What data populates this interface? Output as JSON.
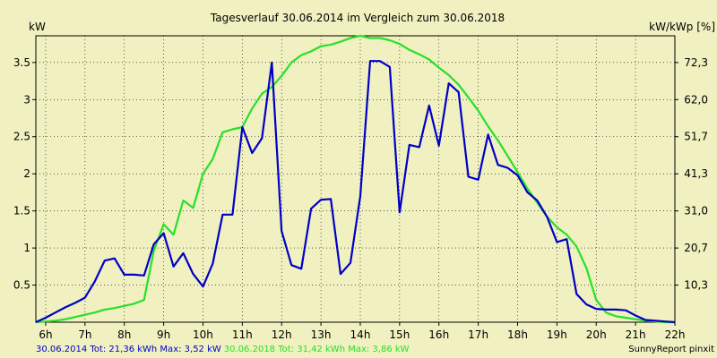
{
  "chart_data": {
    "type": "line",
    "title": "Tagesverlauf 30.06.2014 im Vergleich zum 30.06.2018",
    "ylabel_left": "kW",
    "ylabel_right": "kW/kWp [%]",
    "xlim": [
      5.75,
      22.0
    ],
    "ylim": [
      0,
      3.86
    ],
    "x_ticks": [
      {
        "x": 6,
        "label": "6h"
      },
      {
        "x": 7,
        "label": "7h"
      },
      {
        "x": 8,
        "label": "8h"
      },
      {
        "x": 9,
        "label": "9h"
      },
      {
        "x": 10,
        "label": "10h"
      },
      {
        "x": 11,
        "label": "11h"
      },
      {
        "x": 12,
        "label": "12h"
      },
      {
        "x": 13,
        "label": "13h"
      },
      {
        "x": 14,
        "label": "14h"
      },
      {
        "x": 15,
        "label": "15h"
      },
      {
        "x": 16,
        "label": "16h"
      },
      {
        "x": 17,
        "label": "17h"
      },
      {
        "x": 18,
        "label": "18h"
      },
      {
        "x": 19,
        "label": "19h"
      },
      {
        "x": 20,
        "label": "20h"
      },
      {
        "x": 21,
        "label": "21h"
      },
      {
        "x": 22,
        "label": "22h"
      }
    ],
    "y_ticks_left": [
      {
        "y": 0.5,
        "label": "0.5"
      },
      {
        "y": 1,
        "label": "1"
      },
      {
        "y": 1.5,
        "label": "1.5"
      },
      {
        "y": 2,
        "label": "2"
      },
      {
        "y": 2.5,
        "label": "2.5"
      },
      {
        "y": 3,
        "label": "3"
      },
      {
        "y": 3.5,
        "label": "3.5"
      }
    ],
    "y_ticks_right": [
      {
        "y": 0.5,
        "label": "10,3"
      },
      {
        "y": 1,
        "label": "20,7"
      },
      {
        "y": 1.5,
        "label": "31,0"
      },
      {
        "y": 2,
        "label": "41,3"
      },
      {
        "y": 2.5,
        "label": "51,7"
      },
      {
        "y": 3,
        "label": "62,0"
      },
      {
        "y": 3.5,
        "label": "72,3"
      }
    ],
    "grid": true,
    "series": [
      {
        "name": "30.06.2014",
        "color": "#0000c8",
        "summary": "30.06.2014 Tot: 21,36 kWh Max: 3,52 kW",
        "points": [
          [
            5.75,
            0.0
          ],
          [
            6.0,
            0.06
          ],
          [
            6.25,
            0.13
          ],
          [
            6.5,
            0.2
          ],
          [
            6.75,
            0.26
          ],
          [
            7.0,
            0.33
          ],
          [
            7.25,
            0.55
          ],
          [
            7.5,
            0.83
          ],
          [
            7.75,
            0.86
          ],
          [
            8.0,
            0.64
          ],
          [
            8.25,
            0.64
          ],
          [
            8.5,
            0.63
          ],
          [
            8.75,
            1.05
          ],
          [
            9.0,
            1.2
          ],
          [
            9.25,
            0.75
          ],
          [
            9.5,
            0.93
          ],
          [
            9.75,
            0.65
          ],
          [
            10.0,
            0.48
          ],
          [
            10.25,
            0.79
          ],
          [
            10.5,
            1.45
          ],
          [
            10.75,
            1.45
          ],
          [
            11.0,
            2.63
          ],
          [
            11.25,
            2.28
          ],
          [
            11.5,
            2.48
          ],
          [
            11.75,
            3.5
          ],
          [
            12.0,
            1.23
          ],
          [
            12.25,
            0.77
          ],
          [
            12.5,
            0.72
          ],
          [
            12.75,
            1.53
          ],
          [
            13.0,
            1.65
          ],
          [
            13.25,
            1.66
          ],
          [
            13.5,
            0.65
          ],
          [
            13.75,
            0.8
          ],
          [
            14.0,
            1.7
          ],
          [
            14.25,
            3.52
          ],
          [
            14.5,
            3.52
          ],
          [
            14.75,
            3.44
          ],
          [
            15.0,
            1.48
          ],
          [
            15.25,
            2.39
          ],
          [
            15.5,
            2.36
          ],
          [
            15.75,
            2.92
          ],
          [
            16.0,
            2.38
          ],
          [
            16.25,
            3.22
          ],
          [
            16.5,
            3.1
          ],
          [
            16.75,
            1.96
          ],
          [
            17.0,
            1.92
          ],
          [
            17.25,
            2.53
          ],
          [
            17.5,
            2.12
          ],
          [
            17.75,
            2.08
          ],
          [
            18.0,
            1.98
          ],
          [
            18.25,
            1.75
          ],
          [
            18.5,
            1.64
          ],
          [
            18.75,
            1.42
          ],
          [
            19.0,
            1.08
          ],
          [
            19.25,
            1.12
          ],
          [
            19.5,
            0.38
          ],
          [
            19.75,
            0.24
          ],
          [
            20.0,
            0.18
          ],
          [
            20.25,
            0.17
          ],
          [
            20.5,
            0.17
          ],
          [
            20.75,
            0.16
          ],
          [
            21.0,
            0.09
          ],
          [
            21.25,
            0.03
          ],
          [
            21.5,
            0.02
          ],
          [
            21.75,
            0.01
          ],
          [
            22.0,
            0.0
          ]
        ]
      },
      {
        "name": "30.06.2018",
        "color": "#28e028",
        "summary": "30.06.2018 Tot: 31,42 kWh Max: 3,86 kW",
        "points": [
          [
            5.75,
            0.0
          ],
          [
            6.0,
            0.01
          ],
          [
            6.25,
            0.02
          ],
          [
            6.5,
            0.04
          ],
          [
            6.75,
            0.07
          ],
          [
            7.0,
            0.1
          ],
          [
            7.25,
            0.13
          ],
          [
            7.5,
            0.17
          ],
          [
            7.75,
            0.19
          ],
          [
            8.0,
            0.22
          ],
          [
            8.25,
            0.25
          ],
          [
            8.5,
            0.3
          ],
          [
            8.75,
            0.96
          ],
          [
            9.0,
            1.32
          ],
          [
            9.25,
            1.18
          ],
          [
            9.5,
            1.64
          ],
          [
            9.75,
            1.54
          ],
          [
            10.0,
            2.0
          ],
          [
            10.25,
            2.2
          ],
          [
            10.5,
            2.56
          ],
          [
            10.75,
            2.6
          ],
          [
            11.0,
            2.63
          ],
          [
            11.25,
            2.88
          ],
          [
            11.5,
            3.08
          ],
          [
            11.75,
            3.17
          ],
          [
            12.0,
            3.32
          ],
          [
            12.25,
            3.5
          ],
          [
            12.5,
            3.6
          ],
          [
            12.75,
            3.65
          ],
          [
            13.0,
            3.72
          ],
          [
            13.25,
            3.74
          ],
          [
            13.5,
            3.78
          ],
          [
            13.75,
            3.83
          ],
          [
            14.0,
            3.86
          ],
          [
            14.25,
            3.83
          ],
          [
            14.5,
            3.83
          ],
          [
            14.75,
            3.8
          ],
          [
            15.0,
            3.75
          ],
          [
            15.25,
            3.67
          ],
          [
            15.5,
            3.61
          ],
          [
            15.75,
            3.54
          ],
          [
            16.0,
            3.43
          ],
          [
            16.25,
            3.33
          ],
          [
            16.5,
            3.2
          ],
          [
            16.75,
            3.03
          ],
          [
            17.0,
            2.85
          ],
          [
            17.25,
            2.64
          ],
          [
            17.5,
            2.45
          ],
          [
            17.75,
            2.24
          ],
          [
            18.0,
            2.02
          ],
          [
            18.25,
            1.8
          ],
          [
            18.5,
            1.61
          ],
          [
            18.75,
            1.42
          ],
          [
            19.0,
            1.28
          ],
          [
            19.25,
            1.18
          ],
          [
            19.5,
            1.02
          ],
          [
            19.75,
            0.73
          ],
          [
            20.0,
            0.3
          ],
          [
            20.25,
            0.13
          ],
          [
            20.5,
            0.08
          ],
          [
            20.75,
            0.06
          ],
          [
            21.0,
            0.04
          ],
          [
            21.25,
            0.02
          ],
          [
            21.5,
            0.01
          ],
          [
            21.75,
            0.0
          ],
          [
            22.0,
            0.0
          ]
        ]
      }
    ],
    "footer_right": "SunnyReport pinxit"
  }
}
